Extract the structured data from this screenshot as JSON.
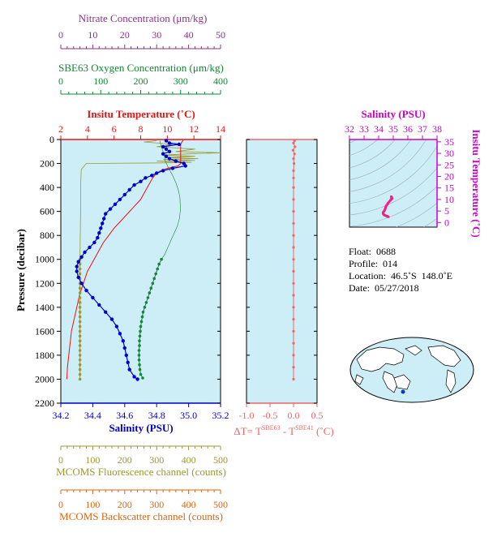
{
  "info": {
    "float": "Float:  0688",
    "profile": "Profile:  014",
    "location": "Location:  46.5˚S  148.0˚E",
    "date": "Date:  05/27/2018"
  },
  "colors": {
    "temperature": "#ee1111",
    "salinity": "#0000cc",
    "oxygen": "#118833",
    "nitrate": "#883388",
    "fluorescence": "#999933",
    "backscatter": "#dd6611",
    "delta_t": "#ee6666",
    "ts_axis": "#cc00cc",
    "plot_bg": "#cdeef7"
  },
  "chart_data": [
    {
      "type": "line",
      "title": "",
      "ylabel": "Pressure (decibar)",
      "ylim": [
        2200,
        0
      ],
      "yticks": [
        0,
        200,
        400,
        600,
        800,
        1000,
        1200,
        1400,
        1600,
        1800,
        2000,
        2200
      ],
      "grid": false,
      "axes": {
        "nitrate": {
          "label": "Nitrate Concentration (μm/kg)",
          "range": [
            0,
            50
          ],
          "ticks": [
            0,
            10,
            20,
            30,
            40,
            50
          ]
        },
        "oxygen": {
          "label": "SBE63 Oxygen Concentration (μm/kg)",
          "range": [
            0,
            400
          ],
          "ticks": [
            0,
            100,
            200,
            300,
            400
          ]
        },
        "temperature": {
          "label": "Insitu Temperature (˚C)",
          "range": [
            2,
            14
          ],
          "ticks": [
            2,
            4,
            6,
            8,
            10,
            12,
            14
          ]
        },
        "salinity": {
          "label": "Salinity (PSU)",
          "range": [
            34.2,
            35.2
          ],
          "ticks": [
            "34.2",
            "34.4",
            "34.6",
            "34.8",
            "35.0",
            "35.2"
          ]
        },
        "fluorescence": {
          "label": "MCOMS Fluorescence channel (counts)",
          "range": [
            0,
            500
          ],
          "ticks": [
            0,
            100,
            200,
            300,
            400,
            500
          ]
        },
        "backscatter": {
          "label": "MCOMS Backscatter channel (counts)",
          "range": [
            0,
            500
          ],
          "ticks": [
            0,
            100,
            200,
            300,
            400,
            500
          ]
        }
      },
      "series": [
        {
          "key": "temperature",
          "points": [
            [
              11.2,
              5
            ],
            [
              11.1,
              20
            ],
            [
              11.0,
              40
            ],
            [
              11.0,
              60
            ],
            [
              11.0,
              80
            ],
            [
              11.0,
              100
            ],
            [
              11.0,
              120
            ],
            [
              11.0,
              140
            ],
            [
              11.0,
              160
            ],
            [
              11.0,
              180
            ],
            [
              11.0,
              200
            ],
            [
              10.8,
              220
            ],
            [
              10.0,
              240
            ],
            [
              9.5,
              260
            ],
            [
              9.2,
              280
            ],
            [
              8.9,
              320
            ],
            [
              8.6,
              380
            ],
            [
              8.3,
              440
            ],
            [
              8.0,
              500
            ],
            [
              7.5,
              560
            ],
            [
              7.0,
              620
            ],
            [
              6.5,
              680
            ],
            [
              6.0,
              740
            ],
            [
              5.6,
              800
            ],
            [
              5.2,
              860
            ],
            [
              4.9,
              920
            ],
            [
              4.6,
              980
            ],
            [
              4.3,
              1040
            ],
            [
              4.0,
              1100
            ],
            [
              3.7,
              1200
            ],
            [
              3.4,
              1300
            ],
            [
              3.2,
              1400
            ],
            [
              3.0,
              1500
            ],
            [
              2.8,
              1600
            ],
            [
              2.7,
              1700
            ],
            [
              2.6,
              1800
            ],
            [
              2.5,
              1900
            ],
            [
              2.45,
              2000
            ]
          ]
        },
        {
          "key": "salinity",
          "points": [
            [
              34.86,
              10
            ],
            [
              34.88,
              30
            ],
            [
              34.94,
              40
            ],
            [
              34.84,
              60
            ],
            [
              34.86,
              80
            ],
            [
              34.88,
              100
            ],
            [
              34.84,
              120
            ],
            [
              34.86,
              140
            ],
            [
              34.88,
              160
            ],
            [
              34.92,
              180
            ],
            [
              34.97,
              200
            ],
            [
              34.98,
              220
            ],
            [
              34.9,
              240
            ],
            [
              34.84,
              260
            ],
            [
              34.8,
              280
            ],
            [
              34.77,
              300
            ],
            [
              34.73,
              320
            ],
            [
              34.7,
              350
            ],
            [
              34.66,
              380
            ],
            [
              34.63,
              420
            ],
            [
              34.6,
              460
            ],
            [
              34.57,
              500
            ],
            [
              34.54,
              540
            ],
            [
              34.51,
              580
            ],
            [
              34.48,
              620
            ],
            [
              34.47,
              660
            ],
            [
              34.46,
              700
            ],
            [
              34.45,
              740
            ],
            [
              34.44,
              780
            ],
            [
              34.43,
              820
            ],
            [
              34.41,
              860
            ],
            [
              34.38,
              900
            ],
            [
              34.35,
              940
            ],
            [
              34.33,
              980
            ],
            [
              34.31,
              1020
            ],
            [
              34.3,
              1060
            ],
            [
              34.3,
              1100
            ],
            [
              34.31,
              1150
            ],
            [
              34.33,
              1200
            ],
            [
              34.36,
              1260
            ],
            [
              34.4,
              1320
            ],
            [
              34.44,
              1380
            ],
            [
              34.48,
              1440
            ],
            [
              34.52,
              1500
            ],
            [
              34.55,
              1560
            ],
            [
              34.57,
              1620
            ],
            [
              34.59,
              1680
            ],
            [
              34.6,
              1740
            ],
            [
              34.61,
              1800
            ],
            [
              34.62,
              1860
            ],
            [
              34.63,
              1920
            ],
            [
              34.66,
              1980
            ],
            [
              34.68,
              2000
            ]
          ]
        },
        {
          "key": "oxygen",
          "points": [
            [
              252,
              1000
            ],
            [
              246,
              1040
            ],
            [
              242,
              1080
            ],
            [
              238,
              1120
            ],
            [
              234,
              1160
            ],
            [
              230,
              1200
            ],
            [
              226,
              1240
            ],
            [
              222,
              1280
            ],
            [
              218,
              1320
            ],
            [
              214,
              1360
            ],
            [
              210,
              1400
            ],
            [
              206,
              1440
            ],
            [
              204,
              1480
            ],
            [
              202,
              1520
            ],
            [
              200,
              1560
            ],
            [
              199,
              1600
            ],
            [
              198,
              1640
            ],
            [
              197,
              1680
            ],
            [
              197,
              1720
            ],
            [
              196,
              1760
            ],
            [
              196,
              1800
            ],
            [
              196,
              1840
            ],
            [
              197,
              1880
            ],
            [
              198,
              1920
            ],
            [
              200,
              1960
            ],
            [
              205,
              1990
            ]
          ]
        },
        {
          "key": "oxygen_raw",
          "points": [
            [
              248,
              10
            ],
            [
              252,
              60
            ],
            [
              258,
              120
            ],
            [
              262,
              180
            ],
            [
              270,
              240
            ],
            [
              280,
              300
            ],
            [
              288,
              360
            ],
            [
              294,
              420
            ],
            [
              298,
              480
            ],
            [
              299,
              540
            ],
            [
              299,
              600
            ],
            [
              297,
              660
            ],
            [
              292,
              720
            ],
            [
              284,
              780
            ],
            [
              276,
              840
            ],
            [
              268,
              900
            ],
            [
              260,
              960
            ],
            [
              252,
              1000
            ]
          ]
        },
        {
          "key": "fluorescence",
          "points": [
            [
              60,
              1000
            ],
            [
              60,
              1040
            ],
            [
              60,
              1080
            ],
            [
              60,
              1120
            ],
            [
              60,
              1160
            ],
            [
              60,
              1200
            ],
            [
              60,
              1240
            ],
            [
              60,
              1280
            ],
            [
              60,
              1320
            ],
            [
              60,
              1360
            ],
            [
              60,
              1400
            ],
            [
              60,
              1440
            ],
            [
              60,
              1480
            ],
            [
              60,
              1520
            ],
            [
              60,
              1560
            ],
            [
              60,
              1600
            ],
            [
              60,
              1640
            ],
            [
              60,
              1680
            ],
            [
              60,
              1720
            ],
            [
              60,
              1760
            ],
            [
              60,
              1800
            ],
            [
              60,
              1840
            ],
            [
              60,
              1880
            ],
            [
              60,
              1920
            ],
            [
              60,
              1960
            ],
            [
              60,
              2000
            ]
          ]
        },
        {
          "key": "fluorescence_raw",
          "points": [
            [
              60,
              1000
            ],
            [
              61,
              800
            ],
            [
              62,
              600
            ],
            [
              62,
              400
            ],
            [
              64,
              250
            ],
            [
              80,
              200
            ],
            [
              320,
              195
            ],
            [
              410,
              190
            ],
            [
              300,
              180
            ],
            [
              420,
              175
            ],
            [
              320,
              165
            ],
            [
              430,
              160
            ],
            [
              330,
              150
            ],
            [
              420,
              140
            ],
            [
              320,
              130
            ],
            [
              400,
              120
            ],
            [
              500,
              110
            ],
            [
              360,
              100
            ],
            [
              420,
              80
            ],
            [
              300,
              60
            ],
            [
              350,
              40
            ],
            [
              260,
              20
            ],
            [
              300,
              10
            ]
          ]
        }
      ]
    },
    {
      "type": "line",
      "title": "",
      "xlabel": "ΔT= T^SBE63 - T^SBE41 (˚C)",
      "xlim": [
        -1.0,
        0.5
      ],
      "xticks": [
        "-1.0",
        "-0.5",
        "0.0",
        "0.5"
      ],
      "ylim": [
        2200,
        0
      ],
      "series": [
        {
          "key": "delta_t",
          "points": [
            [
              0.02,
              10
            ],
            [
              0.0,
              30
            ],
            [
              0.03,
              60
            ],
            [
              -0.01,
              90
            ],
            [
              0.02,
              120
            ],
            [
              0.0,
              160
            ],
            [
              0.01,
              200
            ],
            [
              0.0,
              260
            ],
            [
              0.0,
              320
            ],
            [
              0.0,
              400
            ],
            [
              0.0,
              500
            ],
            [
              0.0,
              600
            ],
            [
              0.0,
              700
            ],
            [
              0.0,
              800
            ],
            [
              0.0,
              900
            ],
            [
              0.0,
              1000
            ],
            [
              0.0,
              1100
            ],
            [
              0.0,
              1200
            ],
            [
              0.0,
              1300
            ],
            [
              0.0,
              1400
            ],
            [
              0.0,
              1500
            ],
            [
              0.0,
              1600
            ],
            [
              0.0,
              1700
            ],
            [
              0.0,
              1800
            ],
            [
              0.0,
              1900
            ],
            [
              0.0,
              2000
            ]
          ]
        }
      ]
    },
    {
      "type": "scatter",
      "title": "",
      "xlabel": "Salinity (PSU)",
      "ylabel": "Insitu Temperature (˚C)",
      "xlim": [
        32,
        38
      ],
      "ylim": [
        -2,
        36
      ],
      "xticks": [
        32,
        33,
        34,
        35,
        36,
        37,
        38
      ],
      "yticks": [
        0,
        5,
        10,
        15,
        20,
        25,
        30,
        35
      ],
      "series": [
        {
          "key": "ts",
          "points": [
            [
              34.86,
              11.2
            ],
            [
              34.88,
              11.0
            ],
            [
              34.9,
              10.8
            ],
            [
              34.92,
              10.4
            ],
            [
              34.85,
              10.0
            ],
            [
              34.8,
              9.6
            ],
            [
              34.72,
              9.0
            ],
            [
              34.65,
              8.5
            ],
            [
              34.6,
              8.0
            ],
            [
              34.55,
              7.5
            ],
            [
              34.5,
              7.0
            ],
            [
              34.47,
              6.5
            ],
            [
              34.45,
              6.0
            ],
            [
              34.42,
              5.5
            ],
            [
              34.38,
              5.0
            ],
            [
              34.33,
              4.6
            ],
            [
              34.3,
              4.2
            ],
            [
              34.31,
              3.8
            ],
            [
              34.36,
              3.4
            ],
            [
              34.44,
              3.1
            ],
            [
              34.52,
              2.9
            ],
            [
              34.58,
              2.7
            ],
            [
              34.62,
              2.6
            ],
            [
              34.66,
              2.5
            ]
          ]
        }
      ]
    }
  ]
}
